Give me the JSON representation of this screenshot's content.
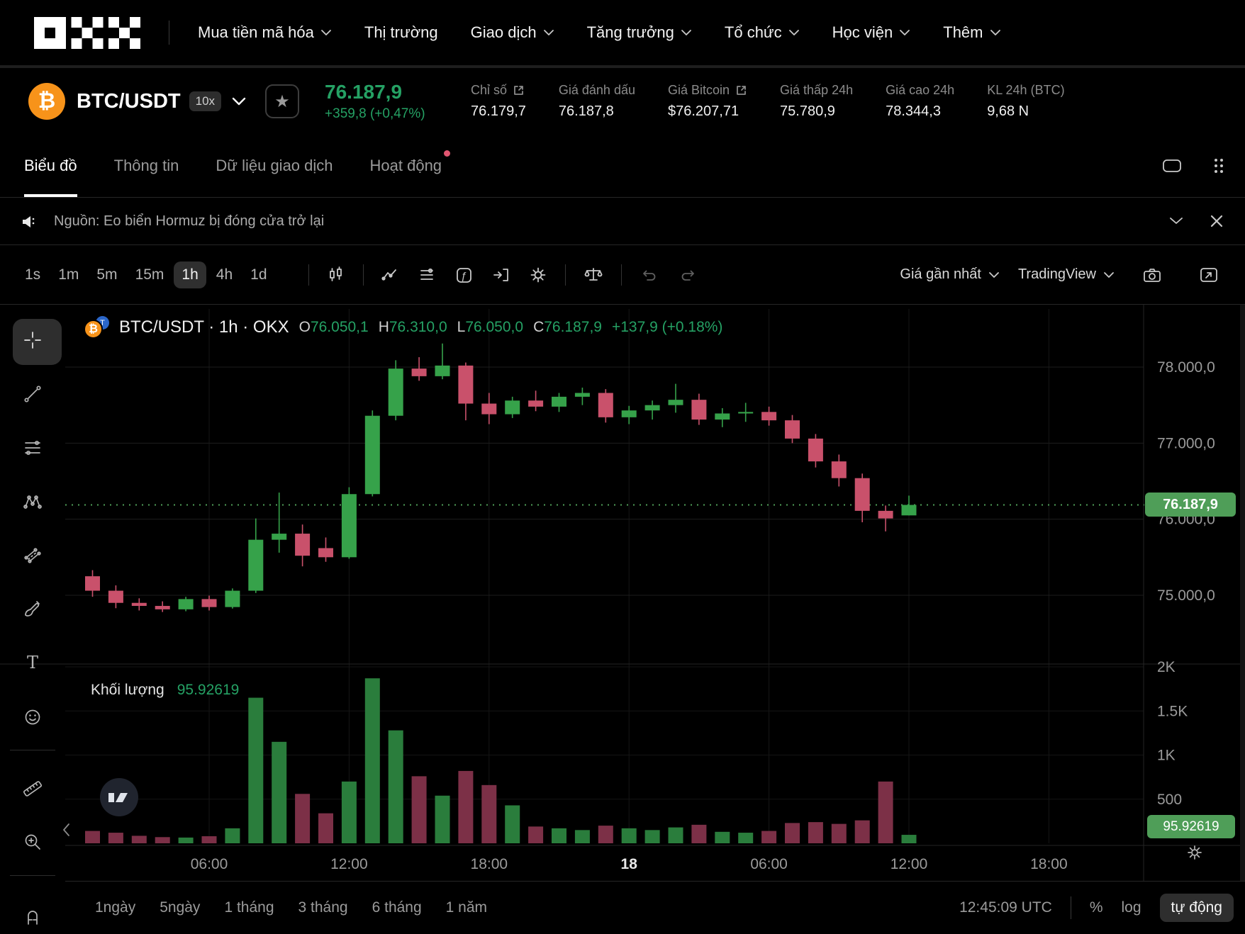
{
  "colors": {
    "up": "#36a24a",
    "down": "#c9516b",
    "vol_up": "#2a7d3c",
    "vol_down": "#7c3047",
    "text_up": "#25a164",
    "badge": "#4f9e58",
    "bitcoin_orange": "#f7931a",
    "alert_dot": "#e25671"
  },
  "nav": {
    "brand": "OKX",
    "items": [
      {
        "label": "Mua tiền mã hóa",
        "chevron": true
      },
      {
        "label": "Thị trường",
        "chevron": false
      },
      {
        "label": "Giao dịch",
        "chevron": true
      },
      {
        "label": "Tăng trưởng",
        "chevron": true
      },
      {
        "label": "Tổ chức",
        "chevron": true
      },
      {
        "label": "Học viện",
        "chevron": true
      },
      {
        "label": "Thêm",
        "chevron": true
      }
    ]
  },
  "ticker": {
    "coin_symbol": "₿",
    "pair": "BTC/USDT",
    "leverage": "10x",
    "price": "76.187,9",
    "change": "+359,8 (+0,47%)",
    "stats": [
      {
        "label": "Chỉ số",
        "value": "76.179,7"
      },
      {
        "label": "Giá đánh dấu",
        "value": "76.187,8"
      },
      {
        "label": "Giá Bitcoin",
        "value": "$76.207,71"
      },
      {
        "label": "Giá thấp 24h",
        "value": "75.780,9"
      },
      {
        "label": "Giá cao 24h",
        "value": "78.344,3"
      },
      {
        "label": "KL 24h (BTC)",
        "value": "9,68 N"
      }
    ]
  },
  "tabs": {
    "items": [
      {
        "label": "Biểu đồ"
      },
      {
        "label": "Thông tin"
      },
      {
        "label": "Dữ liệu giao dịch"
      },
      {
        "label": "Hoạt động"
      }
    ]
  },
  "news": {
    "text": "Nguồn: Eo biển Hormuz bị đóng cửa trở lại"
  },
  "toolbar": {
    "timeframes": [
      "1s",
      "1m",
      "5m",
      "15m",
      "1h",
      "4h",
      "1d"
    ],
    "active_timeframe": "1h",
    "price_mode": "Giá gần nhất",
    "provider": "TradingView"
  },
  "legend": {
    "pair": "BTC/USDT · 1h · OKX",
    "o_label": "O",
    "o": "76.050,1",
    "h_label": "H",
    "h": "76.310,0",
    "l_label": "L",
    "l": "76.050,0",
    "c_label": "C",
    "c": "76.187,9",
    "change": "+137,9 (+0.18%)"
  },
  "volume_pane": {
    "label": "Khối lượng",
    "value": "95.92619"
  },
  "footer": {
    "ranges": [
      "1ngày",
      "5ngày",
      "1 tháng",
      "3 tháng",
      "6 tháng",
      "1 năm"
    ],
    "clock": "12:45:09 UTC",
    "percent": "%",
    "log": "log",
    "auto": "tự động"
  },
  "chart_data": {
    "type": "candlestick",
    "symbol": "BTC/USDT",
    "interval": "1h",
    "exchange": "OKX",
    "last_price": 76187.9,
    "last_price_label": "76.187,9",
    "last_volume_label": "95.92619",
    "price_ticks": [
      {
        "p": 78000,
        "label": "78.000,0"
      },
      {
        "p": 77000,
        "label": "77.000,0"
      },
      {
        "p": 76000,
        "label": "76.000,0"
      },
      {
        "p": 75000,
        "label": "75.000,0"
      }
    ],
    "vol_ticks": [
      {
        "v": 2000,
        "label": "2K"
      },
      {
        "v": 1500,
        "label": "1.5K"
      },
      {
        "v": 1000,
        "label": "1K"
      },
      {
        "v": 500,
        "label": "500"
      }
    ],
    "time_ticks": [
      {
        "i": 5,
        "label": "06:00",
        "bold": false
      },
      {
        "i": 11,
        "label": "12:00",
        "bold": false
      },
      {
        "i": 17,
        "label": "18:00",
        "bold": false
      },
      {
        "i": 23,
        "label": "18",
        "bold": true
      },
      {
        "i": 29,
        "label": "06:00",
        "bold": false
      },
      {
        "i": 35,
        "label": "12:00",
        "bold": false
      },
      {
        "i": 41,
        "label": "18:00",
        "bold": false
      }
    ],
    "candles": [
      [
        75250,
        75330,
        74980,
        75060,
        140
      ],
      [
        75060,
        75130,
        74830,
        74900,
        120
      ],
      [
        74900,
        74960,
        74800,
        74860,
        85
      ],
      [
        74860,
        74920,
        74780,
        74815,
        70
      ],
      [
        74815,
        74980,
        74790,
        74950,
        65
      ],
      [
        74950,
        74995,
        74800,
        74845,
        80
      ],
      [
        74845,
        75090,
        74825,
        75060,
        170
      ],
      [
        75060,
        76010,
        75030,
        75730,
        1650
      ],
      [
        75730,
        76350,
        75560,
        75810,
        1150
      ],
      [
        75810,
        75930,
        75380,
        75520,
        560
      ],
      [
        75620,
        75760,
        75440,
        75500,
        340
      ],
      [
        75500,
        76420,
        75480,
        76330,
        700
      ],
      [
        76330,
        77430,
        76300,
        77360,
        1870
      ],
      [
        77360,
        78090,
        77300,
        77980,
        1280
      ],
      [
        77980,
        78130,
        77820,
        77880,
        760
      ],
      [
        77880,
        78310,
        77840,
        78020,
        540
      ],
      [
        78020,
        78060,
        77300,
        77520,
        820
      ],
      [
        77520,
        77660,
        77250,
        77380,
        660
      ],
      [
        77380,
        77610,
        77330,
        77560,
        430
      ],
      [
        77560,
        77690,
        77420,
        77480,
        190
      ],
      [
        77480,
        77660,
        77410,
        77610,
        170
      ],
      [
        77610,
        77730,
        77500,
        77660,
        150
      ],
      [
        77660,
        77710,
        77270,
        77340,
        200
      ],
      [
        77340,
        77490,
        77250,
        77430,
        170
      ],
      [
        77430,
        77560,
        77310,
        77500,
        150
      ],
      [
        77500,
        77780,
        77400,
        77570,
        180
      ],
      [
        77570,
        77650,
        77240,
        77310,
        210
      ],
      [
        77310,
        77460,
        77210,
        77390,
        130
      ],
      [
        77390,
        77530,
        77280,
        77410,
        120
      ],
      [
        77410,
        77480,
        77230,
        77300,
        140
      ],
      [
        77300,
        77370,
        77000,
        77060,
        230
      ],
      [
        77060,
        77120,
        76680,
        76760,
        240
      ],
      [
        76760,
        76850,
        76430,
        76540,
        220
      ],
      [
        76540,
        76600,
        75960,
        76110,
        260
      ],
      [
        76110,
        76180,
        75840,
        76010,
        700
      ],
      [
        76050,
        76310,
        76050,
        76188,
        95.93
      ]
    ]
  }
}
